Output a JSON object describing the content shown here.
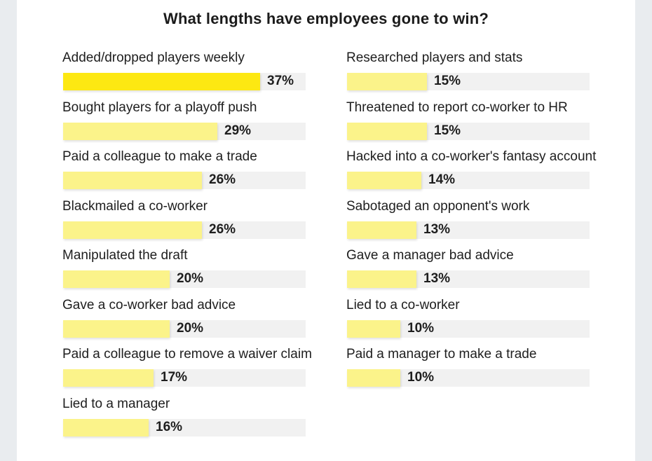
{
  "chart_data": {
    "type": "bar",
    "orientation": "horizontal",
    "title": "What lengths have employees gone to win?",
    "unit": "%",
    "xlim": [
      0,
      100
    ],
    "colors": {
      "bar_high": "#fde812",
      "bar_low": "#fbf38a",
      "track": "#f1f1f1"
    },
    "items": [
      {
        "label": "Added/dropped players weekly",
        "value": 37
      },
      {
        "label": "Bought players for a playoff push",
        "value": 29
      },
      {
        "label": "Paid a colleague to make a trade",
        "value": 26
      },
      {
        "label": "Blackmailed a co-worker",
        "value": 26
      },
      {
        "label": "Manipulated the draft",
        "value": 20
      },
      {
        "label": "Gave a co-worker bad advice",
        "value": 20
      },
      {
        "label": "Paid a colleague to remove a waiver claim",
        "value": 17
      },
      {
        "label": "Lied to a manager",
        "value": 16
      },
      {
        "label": "Researched players and stats",
        "value": 15
      },
      {
        "label": "Threatened to report co-worker to HR",
        "value": 15
      },
      {
        "label": "Hacked into a co-worker's fantasy account",
        "value": 14
      },
      {
        "label": "Sabotaged an opponent's work",
        "value": 13
      },
      {
        "label": "Gave a manager bad advice",
        "value": 13
      },
      {
        "label": "Lied to a co-worker",
        "value": 10
      },
      {
        "label": "Paid a manager to make a trade",
        "value": 10
      }
    ]
  }
}
